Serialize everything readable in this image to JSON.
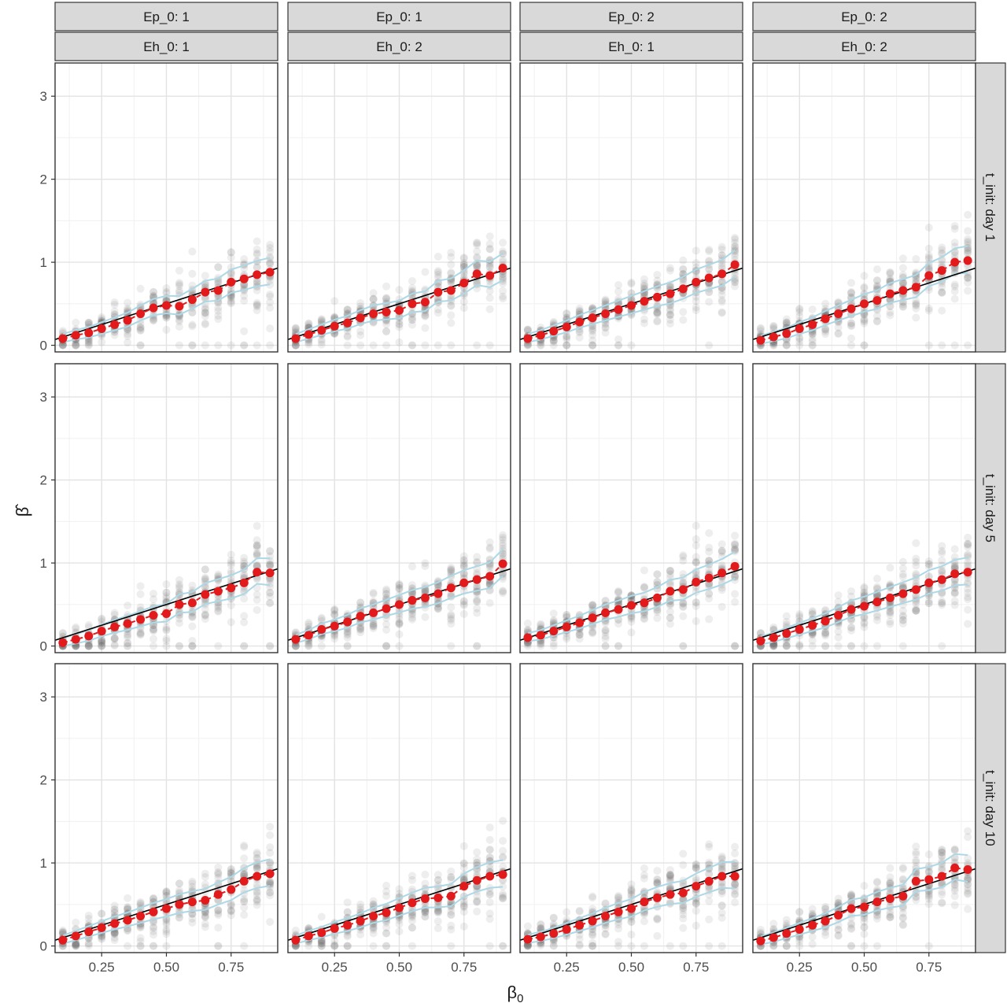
{
  "chart_data": {
    "type": "scatter",
    "facet_cols": [
      {
        "ep": "Ep_0: 1",
        "eh": "Eh_0: 1"
      },
      {
        "ep": "Ep_0: 1",
        "eh": "Eh_0: 2"
      },
      {
        "ep": "Ep_0: 2",
        "eh": "Eh_0: 1"
      },
      {
        "ep": "Ep_0: 2",
        "eh": "Eh_0: 2"
      }
    ],
    "facet_rows": [
      "t_init: day 1",
      "t_init: day 5",
      "t_init: day 10"
    ],
    "xlabel": "β",
    "xlabel_sub": "0",
    "ylabel": "β̂",
    "xlim": [
      0.07,
      0.93
    ],
    "ylim": [
      -0.08,
      3.4
    ],
    "x_ticks": [
      0.25,
      0.5,
      0.75
    ],
    "x_tick_labels": [
      "0.25",
      "0.50",
      "0.75"
    ],
    "y_ticks": [
      0,
      1,
      2,
      3
    ],
    "y_tick_labels": [
      "0",
      "1",
      "2",
      "3"
    ],
    "grid": true,
    "x_levels": [
      0.1,
      0.15,
      0.2,
      0.25,
      0.3,
      0.35,
      0.4,
      0.45,
      0.5,
      0.55,
      0.6,
      0.65,
      0.7,
      0.75,
      0.8,
      0.85,
      0.9
    ],
    "reference_line": {
      "slope": 1,
      "intercept": 0,
      "color": "#000000"
    },
    "colors": {
      "points": "#555555",
      "means": "#e31a1c",
      "band": "#add8e6",
      "strip": "#d9d9d9"
    },
    "panels": [
      [
        {
          "means": [
            0.08,
            0.12,
            0.15,
            0.2,
            0.25,
            0.3,
            0.38,
            0.45,
            0.48,
            0.47,
            0.55,
            0.64,
            0.66,
            0.76,
            0.8,
            0.85,
            0.88
          ]
        },
        {
          "means": [
            0.08,
            0.13,
            0.18,
            0.23,
            0.27,
            0.33,
            0.38,
            0.4,
            0.42,
            0.5,
            0.52,
            0.64,
            0.66,
            0.75,
            0.86,
            0.84,
            0.93
          ]
        },
        {
          "means": [
            0.08,
            0.12,
            0.17,
            0.22,
            0.28,
            0.33,
            0.38,
            0.43,
            0.48,
            0.53,
            0.58,
            0.62,
            0.68,
            0.76,
            0.81,
            0.86,
            0.97
          ]
        },
        {
          "means": [
            0.06,
            0.1,
            0.14,
            0.2,
            0.25,
            0.32,
            0.38,
            0.44,
            0.5,
            0.54,
            0.62,
            0.66,
            0.7,
            0.84,
            0.9,
            1.0,
            1.02
          ]
        }
      ],
      [
        {
          "means": [
            0.04,
            0.08,
            0.12,
            0.18,
            0.23,
            0.27,
            0.32,
            0.37,
            0.39,
            0.5,
            0.52,
            0.62,
            0.66,
            0.7,
            0.76,
            0.89,
            0.88
          ]
        },
        {
          "means": [
            0.08,
            0.13,
            0.2,
            0.24,
            0.29,
            0.36,
            0.4,
            0.45,
            0.5,
            0.55,
            0.58,
            0.63,
            0.7,
            0.76,
            0.8,
            0.84,
            0.99
          ]
        },
        {
          "means": [
            0.1,
            0.13,
            0.18,
            0.23,
            0.28,
            0.34,
            0.4,
            0.44,
            0.49,
            0.52,
            0.58,
            0.66,
            0.68,
            0.77,
            0.82,
            0.88,
            0.96
          ]
        },
        {
          "means": [
            0.06,
            0.1,
            0.15,
            0.2,
            0.25,
            0.3,
            0.37,
            0.44,
            0.48,
            0.53,
            0.58,
            0.63,
            0.68,
            0.76,
            0.8,
            0.87,
            0.89
          ]
        }
      ],
      [
        {
          "means": [
            0.07,
            0.12,
            0.17,
            0.22,
            0.27,
            0.31,
            0.36,
            0.41,
            0.45,
            0.5,
            0.53,
            0.55,
            0.62,
            0.68,
            0.78,
            0.84,
            0.87
          ]
        },
        {
          "means": [
            0.07,
            0.12,
            0.16,
            0.21,
            0.25,
            0.3,
            0.36,
            0.4,
            0.46,
            0.52,
            0.57,
            0.58,
            0.6,
            0.72,
            0.79,
            0.84,
            0.86
          ]
        },
        {
          "means": [
            0.08,
            0.11,
            0.15,
            0.2,
            0.25,
            0.3,
            0.36,
            0.41,
            0.45,
            0.53,
            0.58,
            0.62,
            0.64,
            0.72,
            0.78,
            0.84,
            0.84
          ]
        },
        {
          "means": [
            0.06,
            0.1,
            0.15,
            0.2,
            0.25,
            0.3,
            0.37,
            0.45,
            0.47,
            0.53,
            0.57,
            0.6,
            0.78,
            0.8,
            0.84,
            0.94,
            0.92
          ]
        }
      ]
    ]
  }
}
